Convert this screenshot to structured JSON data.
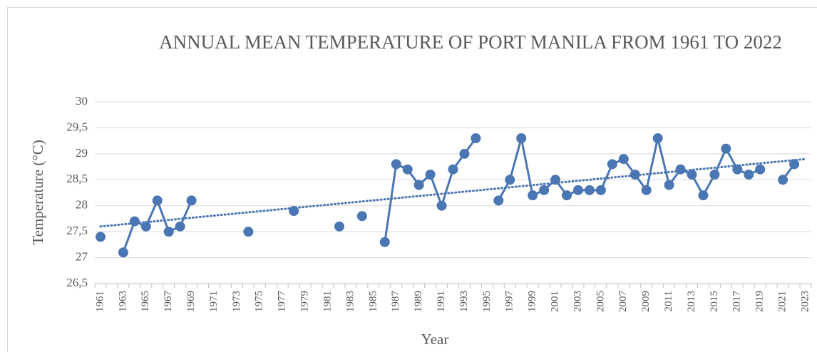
{
  "chart_data": {
    "type": "line",
    "title": "ANNUAL MEAN TEMPERATURE OF PORT MANILA FROM 1961 TO 2022",
    "x_label": "Year",
    "y_label": "Temperature (°C)",
    "categories": [
      "1961",
      null,
      "1963",
      null,
      "1965",
      null,
      "1967",
      null,
      "1969",
      null,
      "1971",
      null,
      "1973",
      null,
      "1975",
      null,
      "1977",
      null,
      "1979",
      null,
      "1981",
      null,
      "1983",
      null,
      "1985",
      null,
      "1987",
      null,
      "1989",
      null,
      "1991",
      null,
      "1993",
      null,
      "1995",
      null,
      "1997",
      null,
      "1999",
      null,
      "2001",
      null,
      "2003",
      null,
      "2005",
      null,
      "2007",
      null,
      "2009",
      null,
      "2011",
      null,
      "2013",
      null,
      "2015",
      null,
      "2017",
      null,
      "2019",
      null,
      "2021",
      null,
      "2023"
    ],
    "series": [
      {
        "color": "#4a76b3",
        "values": [
          27.4,
          null,
          27.1,
          27.7,
          27.6,
          28.1,
          27.5,
          27.6,
          28.1,
          null,
          null,
          null,
          null,
          27.5,
          null,
          null,
          null,
          27.9,
          null,
          null,
          null,
          27.6,
          null,
          27.8,
          null,
          27.3,
          28.8,
          28.7,
          28.4,
          28.6,
          28.0,
          28.7,
          29.0,
          29.3,
          null,
          28.1,
          28.5,
          29.3,
          28.2,
          28.3,
          28.5,
          28.2,
          28.3,
          28.3,
          28.3,
          28.8,
          28.9,
          28.6,
          28.3,
          29.3,
          28.4,
          28.7,
          28.6,
          28.2,
          28.6,
          29.1,
          28.7,
          28.6,
          28.7,
          null,
          28.5,
          28.8,
          null
        ]
      }
    ],
    "trend": {
      "color": "#4a76b3",
      "values": [
        27.6,
        28.9
      ]
    },
    "ylim": [
      26.5,
      30
    ],
    "yticks": [
      {
        "value": 26.5,
        "label": "26,5"
      },
      27,
      {
        "value": 27.5,
        "label": "27,5"
      },
      28,
      {
        "value": 28.5,
        "label": "28,5"
      },
      29,
      {
        "value": 29.5,
        "label": "29,5"
      },
      30
    ],
    "grid": true
  }
}
